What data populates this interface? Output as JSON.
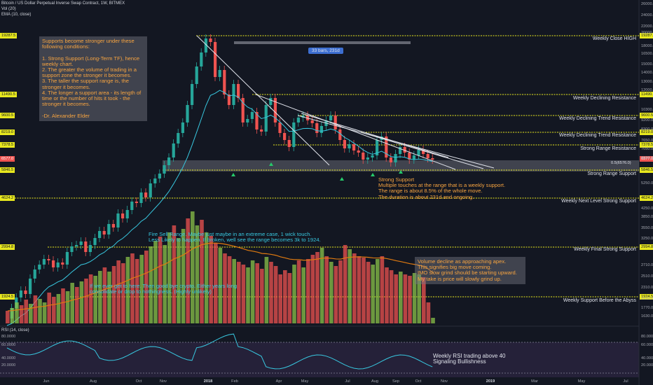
{
  "header": {
    "title": "Bitcoin / US Dollar Perpetual Inverse Swap Contract, 1W, BITMEX",
    "vol": "Vol (20)",
    "ema": "EMA (10, close)"
  },
  "rsi_label": "RSI (14, close)",
  "measure_pill": "33 bars, 231d",
  "fib_label": "0.5(6576.0)",
  "annotations": {
    "supports_box": "Supports become stronger under these following conditions:\n\n1. Strong Support (Long-Term TF), hence weekly chart.\n2. The greater the volume of trading in a support zone the stronger it becomes.\n3. The taller the support range is, the stronger it becomes.\n4. The longer a support area - its length of time or the number of hits it took - the stronger it becomes.\n\n-Dr. Alexander Elder",
    "strong_support": "Strong Support\nMultiple touches at the range that is a weekly support.\nThe range is about 8.5% of the whole move.\nThe duration is about 231d and ongoing.",
    "fire_sell": "Fire Sell Range. Maybe just maybe in an extreme case, 1 wick touch.\nLess Likely to happen. If broken, well see the range becomes 3k to 1924.",
    "volume_decline": "Volume decline as approaching apex.\nThis signifies big move coming.\nIMO slow grind should be starting upward.\nMy take is price will slowly grind up.",
    "bye_crypto": "If we ever get to here. Then good bye crypto. Either years long\nconsolidate or drop to nothingness. (Highly unlikely)",
    "rsi_note": "Weekly RSI trading above 40\nSignaling Bullishness"
  },
  "levels": [
    {
      "label": "Weekly Close HIGH",
      "price": "19287.5"
    },
    {
      "label": "Weekly Declining Resistance",
      "price": "11490.5"
    },
    {
      "label": "Weekly Declining Trend Resistance",
      "price": "9600.5"
    },
    {
      "label": "Weekly Declining Trend Resistance",
      "price": "8219.0"
    },
    {
      "label": "Strong Range Resistance",
      "price": "7378.5"
    },
    {
      "label": "Strong Range Support",
      "price": "5846.5"
    },
    {
      "label": "Weekly Next Level Strong Support",
      "price": "4624.2"
    },
    {
      "label": "Weekly Final Strong Support",
      "price": "2994.8"
    },
    {
      "label": "Weekly Support Before the Abyss",
      "price": "1924.5"
    }
  ],
  "current_price": "6577.0",
  "y_axis_ticks": [
    "26000.0",
    "24000.0",
    "22000.0",
    "20000.0",
    "18000.0",
    "16500.0",
    "15000.0",
    "14000.0",
    "13000.0",
    "12000.0",
    "10300.0",
    "9200.0",
    "8300.0",
    "7650.0",
    "7050.0",
    "6500.0",
    "5250.0",
    "4250.0",
    "3850.0",
    "3550.0",
    "3250.0",
    "2710.0",
    "2510.0",
    "2310.0",
    "2110.0",
    "1770.0",
    "1630.0"
  ],
  "rsi_ticks": [
    "80.0000",
    "60.0000",
    "40.0000",
    "20.0000"
  ],
  "x_axis_ticks": [
    "Jun",
    "Aug",
    "Oct",
    "Nov",
    "2018",
    "Feb",
    "Apr",
    "May",
    "Jul",
    "Aug",
    "Sep",
    "Oct",
    "Nov",
    "2019",
    "Mar",
    "May",
    "Jul"
  ],
  "colors": {
    "background": "#131722",
    "up_candle": "#26a69a",
    "down_candle": "#ef5350",
    "ema": "#38c8e0",
    "level_line": "#e8e81e",
    "note_orange": "#f7a440",
    "note_cyan": "#38c8e0",
    "rsi_band": "#2a2440"
  }
}
